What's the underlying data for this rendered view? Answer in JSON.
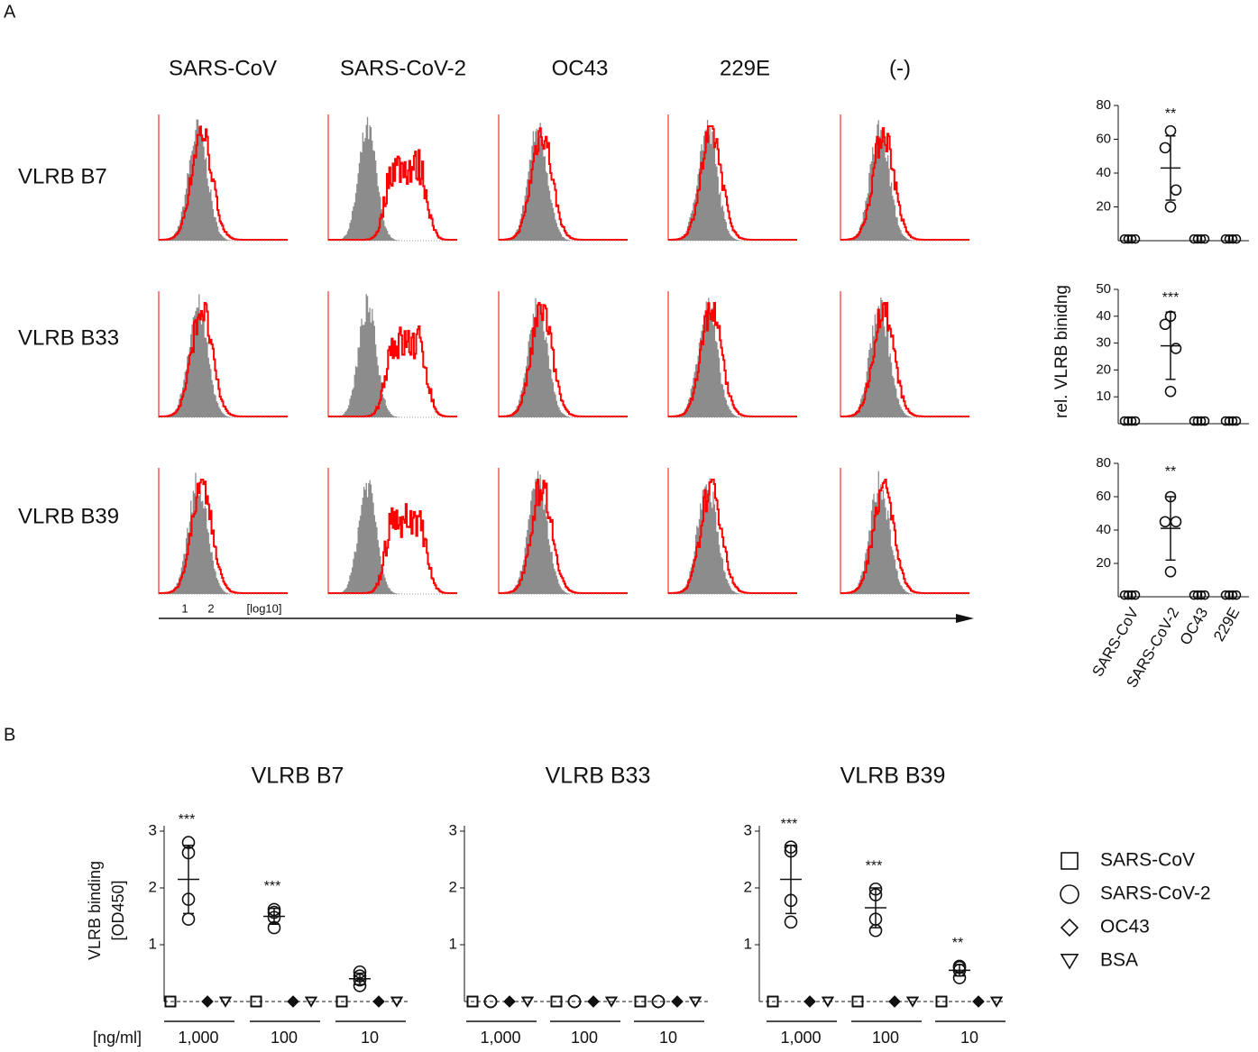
{
  "panel_labels": [
    "A",
    "B"
  ],
  "flow": {
    "columns": [
      "SARS-CoV",
      "SARS-CoV-2",
      "OC43",
      "229E",
      "(-)"
    ],
    "rows": [
      "VLRB B7",
      "VLRB B33",
      "VLRB B39"
    ],
    "axis_ticks": [
      "1",
      "2",
      "[log10]"
    ]
  },
  "a_ylabel": "rel. VLRB binidng",
  "chart_data": [
    {
      "type": "dot",
      "ylim": [
        0,
        80
      ],
      "yticks": [
        20,
        40,
        60,
        80
      ],
      "values": [
        [
          1,
          1,
          1,
          1
        ],
        [
          65,
          55,
          30,
          20
        ],
        [
          1,
          1,
          1,
          1
        ],
        [
          1,
          1,
          1,
          1
        ]
      ],
      "summary": [
        {
          "category": 1,
          "mean": 43,
          "sd": 19
        }
      ],
      "significance": [
        {
          "category": 1,
          "label": "**"
        }
      ]
    },
    {
      "type": "dot",
      "ylim": [
        0,
        50
      ],
      "yticks": [
        10,
        20,
        30,
        40,
        50
      ],
      "values": [
        [
          1,
          1,
          1,
          1
        ],
        [
          40,
          37,
          28,
          12
        ],
        [
          1,
          1,
          1,
          1
        ],
        [
          1,
          1,
          1,
          1
        ]
      ],
      "summary": [
        {
          "category": 1,
          "mean": 29,
          "sd": 12.5
        }
      ],
      "significance": [
        {
          "category": 1,
          "label": "***"
        }
      ]
    },
    {
      "type": "dot",
      "ylim": [
        0,
        80
      ],
      "yticks": [
        20,
        40,
        60,
        80
      ],
      "categories": [
        "SARS-CoV",
        "SARS-CoV-2",
        "OC43",
        "229E"
      ],
      "values": [
        [
          1,
          1,
          1,
          1
        ],
        [
          60,
          45,
          45,
          15
        ],
        [
          1,
          1,
          1,
          1
        ],
        [
          1,
          1,
          1,
          1
        ]
      ],
      "summary": [
        {
          "category": 1,
          "mean": 41,
          "sd": 19
        }
      ],
      "significance": [
        {
          "category": 1,
          "label": "**"
        }
      ]
    },
    {
      "type": "grouped_dot",
      "title": "VLRB B7",
      "ylabel": [
        "VLRB binding",
        "[OD450]"
      ],
      "xlabel": "[ng/ml]",
      "groups": [
        "1,000",
        "100",
        "10"
      ],
      "ylim": [
        0,
        3
      ],
      "yticks": [
        1,
        2,
        3
      ],
      "series": [
        {
          "marker": "square",
          "values": [
            [
              0,
              0,
              0,
              0
            ],
            [
              0,
              0,
              0,
              0
            ],
            [
              0,
              0,
              0,
              0
            ]
          ]
        },
        {
          "marker": "circle",
          "values": [
            [
              2.8,
              2.62,
              1.8,
              1.45
            ],
            [
              1.62,
              1.57,
              1.48,
              1.3
            ],
            [
              0.52,
              0.45,
              0.38,
              0.28
            ]
          ],
          "summary": [
            {
              "mean": 2.15,
              "sd": 0.6
            },
            {
              "mean": 1.5,
              "sd": 0.14
            },
            {
              "mean": 0.4,
              "sd": 0.1
            }
          ]
        },
        {
          "marker": "diamond",
          "values": [
            [
              0,
              0,
              0,
              0
            ],
            [
              0,
              0,
              0,
              0
            ],
            [
              0,
              0,
              0,
              0
            ]
          ]
        },
        {
          "marker": "triangle",
          "values": [
            [
              0,
              0,
              0,
              0
            ],
            [
              0,
              0,
              0,
              0
            ],
            [
              0,
              0,
              0,
              0
            ]
          ]
        }
      ],
      "significance": [
        {
          "group": 0,
          "label": "***"
        },
        {
          "group": 1,
          "label": "***"
        }
      ]
    },
    {
      "type": "grouped_dot",
      "title": "VLRB B33",
      "groups": [
        "1,000",
        "100",
        "10"
      ],
      "ylim": [
        0,
        3
      ],
      "yticks": [
        1,
        2,
        3
      ],
      "series": [
        {
          "marker": "square",
          "values": [
            [
              0,
              0,
              0,
              0
            ],
            [
              0,
              0,
              0,
              0
            ],
            [
              0,
              0,
              0,
              0
            ]
          ]
        },
        {
          "marker": "circle",
          "values": [
            [
              0,
              0,
              0,
              0
            ],
            [
              0,
              0,
              0,
              0
            ],
            [
              0,
              0,
              0,
              0
            ]
          ]
        },
        {
          "marker": "diamond",
          "values": [
            [
              0,
              0,
              0,
              0
            ],
            [
              0,
              0,
              0,
              0
            ],
            [
              0,
              0,
              0,
              0
            ]
          ]
        },
        {
          "marker": "triangle",
          "values": [
            [
              0,
              0,
              0,
              0
            ],
            [
              0,
              0,
              0,
              0
            ],
            [
              0,
              0,
              0,
              0
            ]
          ]
        }
      ]
    },
    {
      "type": "grouped_dot",
      "title": "VLRB B39",
      "legend": "right",
      "groups": [
        "1,000",
        "100",
        "10"
      ],
      "ylim": [
        0,
        3
      ],
      "yticks": [
        1,
        2,
        3
      ],
      "series": [
        {
          "name": "SARS-CoV",
          "marker": "square",
          "values": [
            [
              0,
              0,
              0,
              0
            ],
            [
              0,
              0,
              0,
              0
            ],
            [
              0,
              0,
              0,
              0
            ]
          ]
        },
        {
          "name": "SARS-CoV-2",
          "marker": "circle",
          "values": [
            [
              2.72,
              2.65,
              1.78,
              1.4
            ],
            [
              1.98,
              1.88,
              1.45,
              1.25
            ],
            [
              0.62,
              0.6,
              0.55,
              0.42
            ]
          ],
          "summary": [
            {
              "mean": 2.15,
              "sd": 0.6
            },
            {
              "mean": 1.65,
              "sd": 0.35
            },
            {
              "mean": 0.55,
              "sd": 0.1
            }
          ]
        },
        {
          "name": "OC43",
          "marker": "diamond",
          "values": [
            [
              0,
              0,
              0,
              0
            ],
            [
              0,
              0,
              0,
              0
            ],
            [
              0,
              0,
              0,
              0
            ]
          ]
        },
        {
          "name": "BSA",
          "marker": "triangle",
          "values": [
            [
              0,
              0,
              0,
              0
            ],
            [
              0,
              0,
              0,
              0
            ],
            [
              0,
              0,
              0,
              0
            ]
          ]
        }
      ],
      "significance": [
        {
          "group": 0,
          "label": "***"
        },
        {
          "group": 1,
          "label": "***"
        },
        {
          "group": 2,
          "label": "**"
        }
      ]
    }
  ]
}
